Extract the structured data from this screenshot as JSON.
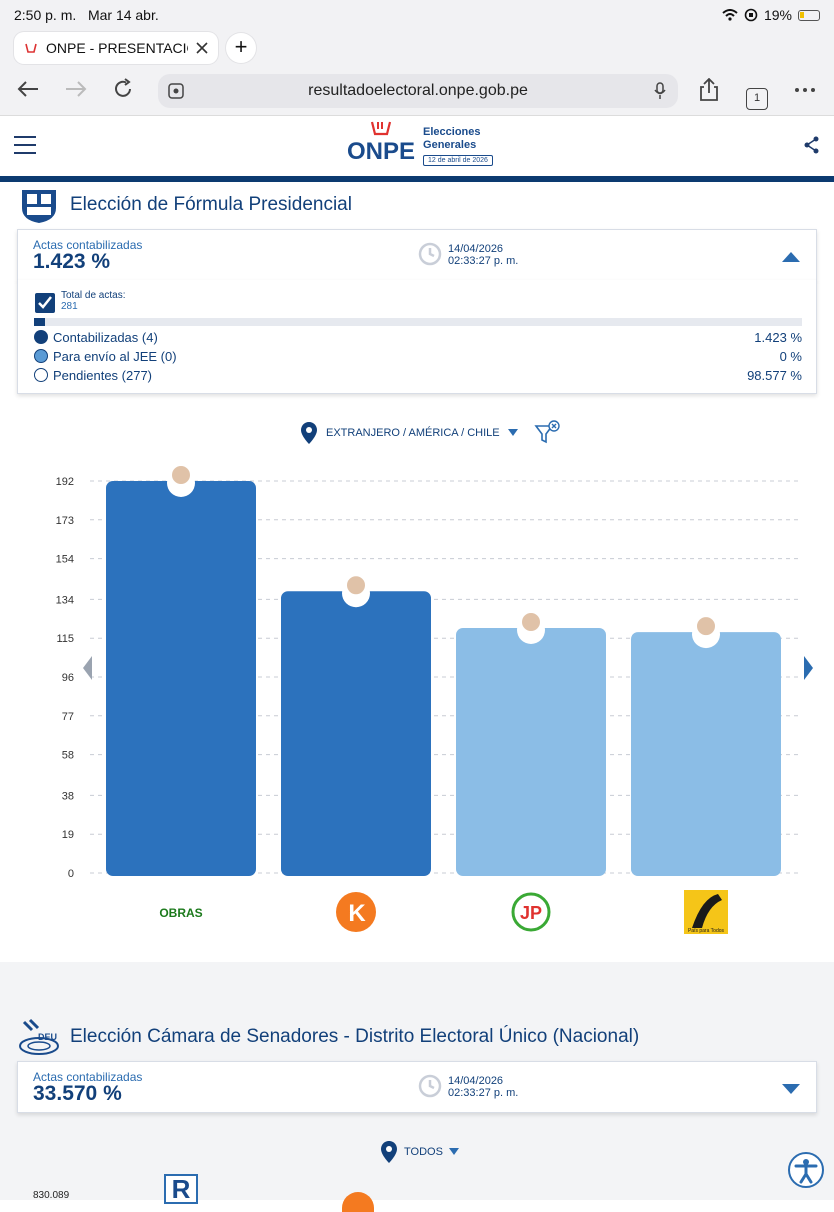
{
  "status_bar": {
    "time": "2:50 p. m.",
    "date": "Mar 14 abr.",
    "battery": "19%"
  },
  "browser": {
    "tab_title": "ONPE - PRESENTACIÓN",
    "url": "resultadoelectoral.onpe.gob.pe",
    "tab_count": "1"
  },
  "header": {
    "logo_text": "ONPE",
    "elections_title": "Elecciones Generales",
    "election_date": "12 de abril de 2026"
  },
  "presidential": {
    "title": "Elección de Fórmula Presidencial",
    "actas_label": "Actas contabilizadas",
    "actas_pct": "1.423 %",
    "update_date": "14/04/2026",
    "update_time": "02:33:27 p. m.",
    "total_label": "Total de actas:",
    "total_value": "281",
    "progress_fraction": 0.01423,
    "legend": [
      {
        "label": "Contabilizadas (4)",
        "value": "1.423 %",
        "color": "#12407a"
      },
      {
        "label": "Para envío al JEE (0)",
        "value": "0 %",
        "color": "#5b9bd5"
      },
      {
        "label": "Pendientes (277)",
        "value": "98.577 %",
        "color": "#ffffff"
      }
    ],
    "location_filter": "EXTRANJERO / AMÉRICA / CHILE"
  },
  "chart_data": {
    "type": "bar",
    "categories": [
      "OBRAS",
      "K",
      "JP",
      "País para Todos"
    ],
    "values": [
      192,
      138,
      120,
      118
    ],
    "colors": [
      "#2c72bd",
      "#2c72bd",
      "#8bbde6",
      "#8bbde6"
    ],
    "yticks": [
      0,
      19,
      38,
      58,
      77,
      96,
      115,
      134,
      154,
      173,
      192
    ],
    "ylim": [
      0,
      192
    ],
    "grid": true,
    "title": "",
    "xlabel": "",
    "ylabel": ""
  },
  "party_logos": {
    "obras": "OBRAS",
    "k": "K",
    "jp": "JP",
    "ppt": "País para Todos"
  },
  "senate": {
    "title": "Elección Cámara de Senadores - Distrito Electoral Único (Nacional)",
    "badge": "DEU",
    "actas_label": "Actas contabilizadas",
    "actas_pct": "33.570 %",
    "update_date": "14/04/2026",
    "update_time": "02:33:27 p. m.",
    "location_filter": "TODOS",
    "peek_value": "830.089",
    "peek_logo": "R"
  }
}
